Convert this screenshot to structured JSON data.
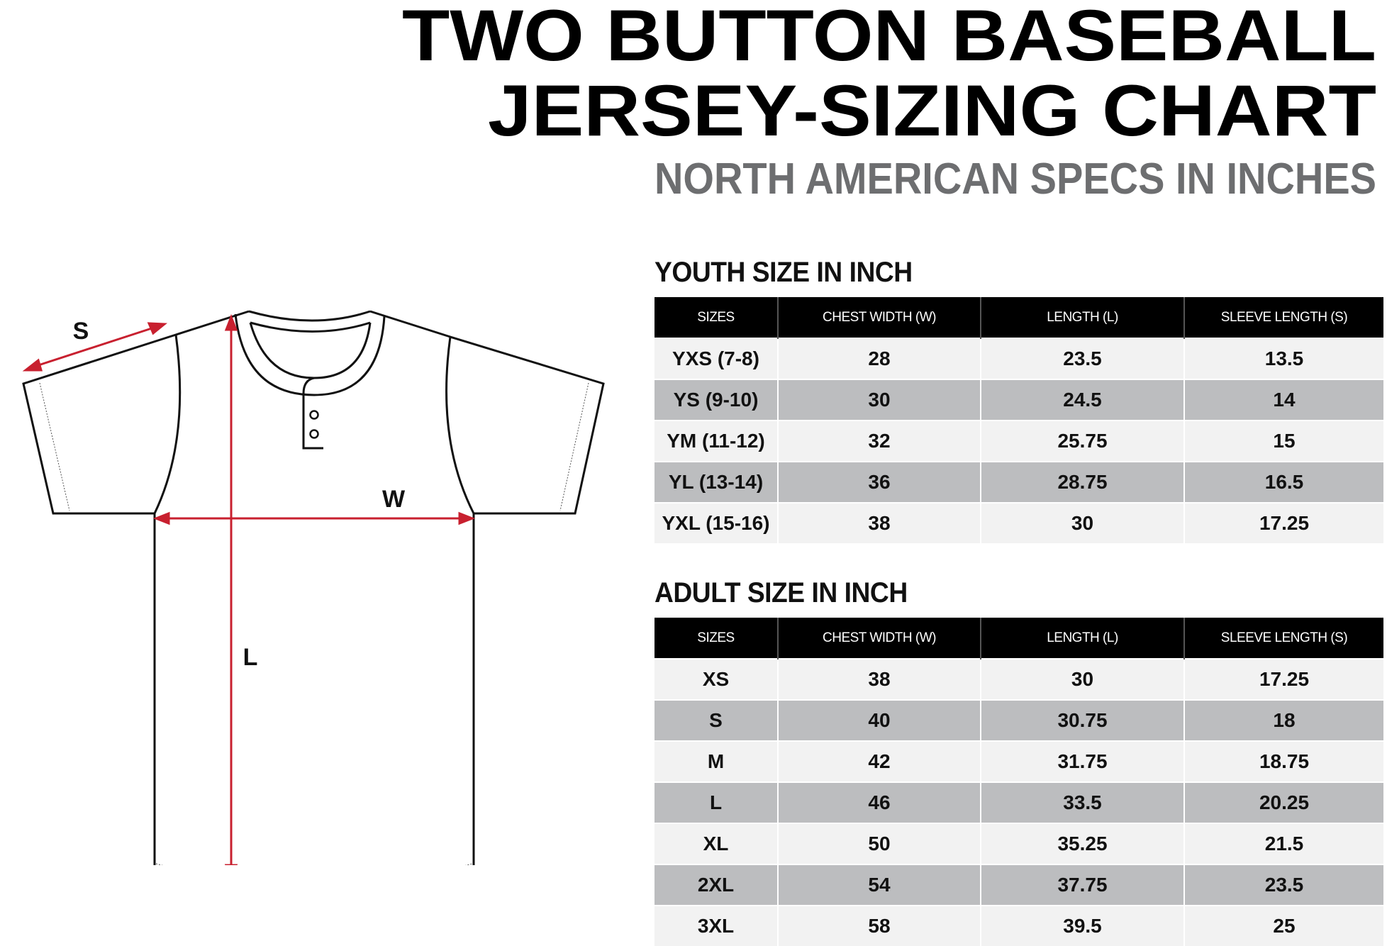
{
  "header": {
    "title_line1": "TWO BUTTON BASEBALL",
    "title_line2": "JERSEY-SIZING CHART",
    "subtitle": "NORTH AMERICAN SPECS IN INCHES"
  },
  "diagram": {
    "label_sleeve": "S",
    "label_width": "W",
    "label_length": "L",
    "arrow_color": "#c8202f"
  },
  "colors": {
    "header_bg": "#000000",
    "row_light": "#f2f2f2",
    "row_dark": "#bcbdbf",
    "subtitle": "#6d6e70"
  },
  "chart_data": [
    {
      "type": "table",
      "title": "YOUTH SIZE IN INCH",
      "columns": [
        "SIZES",
        "CHEST WIDTH (W)",
        "LENGTH (L)",
        "SLEEVE LENGTH (S)"
      ],
      "rows": [
        [
          "YXS (7-8)",
          "28",
          "23.5",
          "13.5"
        ],
        [
          "YS (9-10)",
          "30",
          "24.5",
          "14"
        ],
        [
          "YM (11-12)",
          "32",
          "25.75",
          "15"
        ],
        [
          "YL (13-14)",
          "36",
          "28.75",
          "16.5"
        ],
        [
          "YXL (15-16)",
          "38",
          "30",
          "17.25"
        ]
      ]
    },
    {
      "type": "table",
      "title": "ADULT SIZE IN INCH",
      "columns": [
        "SIZES",
        "CHEST WIDTH (W)",
        "LENGTH (L)",
        "SLEEVE LENGTH (S)"
      ],
      "rows": [
        [
          "XS",
          "38",
          "30",
          "17.25"
        ],
        [
          "S",
          "40",
          "30.75",
          "18"
        ],
        [
          "M",
          "42",
          "31.75",
          "18.75"
        ],
        [
          "L",
          "46",
          "33.5",
          "20.25"
        ],
        [
          "XL",
          "50",
          "35.25",
          "21.5"
        ],
        [
          "2XL",
          "54",
          "37.75",
          "23.5"
        ],
        [
          "3XL",
          "58",
          "39.5",
          "25"
        ]
      ]
    }
  ]
}
